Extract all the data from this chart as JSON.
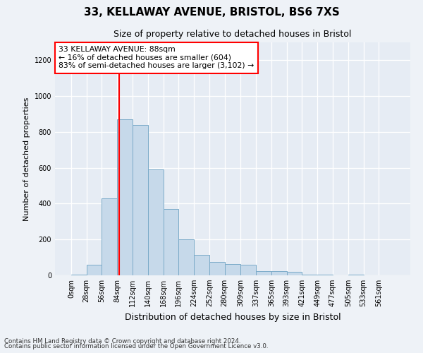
{
  "title1": "33, KELLAWAY AVENUE, BRISTOL, BS6 7XS",
  "title2": "Size of property relative to detached houses in Bristol",
  "xlabel": "Distribution of detached houses by size in Bristol",
  "ylabel": "Number of detached properties",
  "bar_color": "#c6d9ea",
  "bar_edge_color": "#7aaac8",
  "red_line_x": 88,
  "annotation_title": "33 KELLAWAY AVENUE: 88sqm",
  "annotation_line2": "← 16% of detached houses are smaller (604)",
  "annotation_line3": "83% of semi-detached houses are larger (3,102) →",
  "footer1": "Contains HM Land Registry data © Crown copyright and database right 2024.",
  "footer2": "Contains public sector information licensed under the Open Government Licence v3.0.",
  "bins": [
    0,
    28,
    56,
    84,
    112,
    140,
    168,
    196,
    224,
    252,
    280,
    309,
    337,
    365,
    393,
    421,
    449,
    477,
    505,
    533,
    561
  ],
  "counts": [
    5,
    60,
    430,
    870,
    840,
    590,
    370,
    200,
    115,
    75,
    65,
    60,
    25,
    25,
    20,
    5,
    2,
    0,
    3,
    0,
    0
  ],
  "ylim": [
    0,
    1300
  ],
  "yticks": [
    0,
    200,
    400,
    600,
    800,
    1000,
    1200
  ],
  "background_color": "#eef2f7",
  "plot_bg_color": "#e6ecf4"
}
